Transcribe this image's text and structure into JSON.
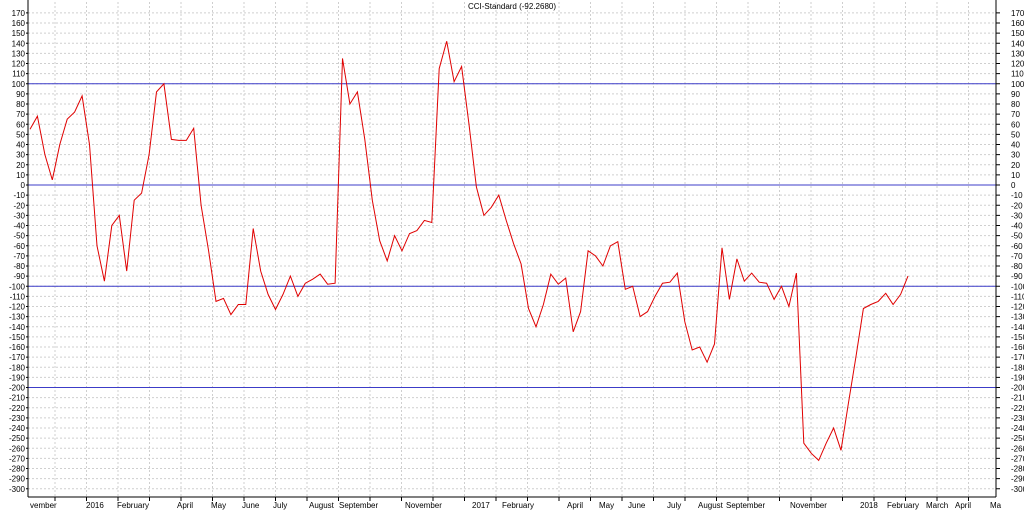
{
  "chart_data": {
    "type": "line",
    "title": "CCI-Standard (-92.2680)",
    "ylim": [
      -305,
      175
    ],
    "y_ticks": [
      170,
      160,
      150,
      140,
      130,
      120,
      110,
      100,
      90,
      80,
      70,
      60,
      50,
      40,
      30,
      20,
      10,
      0,
      -10,
      -20,
      -30,
      -40,
      -50,
      -60,
      -70,
      -80,
      -90,
      -100,
      -110,
      -120,
      -130,
      -140,
      -150,
      -160,
      -170,
      -180,
      -190,
      -200,
      -210,
      -220,
      -230,
      -240,
      -250,
      -260,
      -270,
      -280,
      -290,
      -300
    ],
    "reference_lines": [
      100,
      0,
      -100,
      -200
    ],
    "x_labels": [
      "vember",
      "2016",
      "February",
      "April",
      "May",
      "June",
      "July",
      "August",
      "September",
      "November",
      "2017",
      "February",
      "April",
      "May",
      "June",
      "July",
      "August",
      "September",
      "November",
      "2018",
      "February",
      "March",
      "April",
      "Ma"
    ],
    "grid": true,
    "colors": {
      "line": "#e00000",
      "reference": "#3c3cc8",
      "grid": "#cfcfcf"
    },
    "series": [
      {
        "values": [
          55,
          68,
          30,
          5,
          40,
          65,
          72,
          88,
          40,
          -60,
          -95,
          -40,
          -30,
          -85,
          -15,
          -8,
          30,
          92,
          100,
          45,
          44,
          44,
          56,
          -20,
          -65,
          -115,
          -112,
          -128,
          -118,
          -118,
          -43,
          -85,
          -108,
          -123,
          -108,
          -90,
          -110,
          -97,
          -93,
          -88,
          -98,
          -97,
          125,
          80,
          92,
          45,
          -15,
          -55,
          -75,
          -50,
          -65,
          -48,
          -45,
          -35,
          -37,
          115,
          142,
          102,
          117,
          60,
          -2,
          -30,
          -22,
          -10,
          -35,
          -58,
          -78,
          -122,
          -140,
          -118,
          -88,
          -98,
          -92,
          -145,
          -125,
          -65,
          -70,
          -80,
          -60,
          -56,
          -103,
          -100,
          -130,
          -125,
          -110,
          -97,
          -96,
          -87,
          -135,
          -163,
          -160,
          -175,
          -157,
          -62,
          -113,
          -73,
          -95,
          -87,
          -96,
          -97,
          -113,
          -100,
          -120,
          -87,
          -255,
          -265,
          -272,
          -255,
          -240,
          -262,
          -215,
          -170,
          -122,
          -118,
          -115,
          -107,
          -118,
          -108,
          -90
        ]
      }
    ]
  }
}
